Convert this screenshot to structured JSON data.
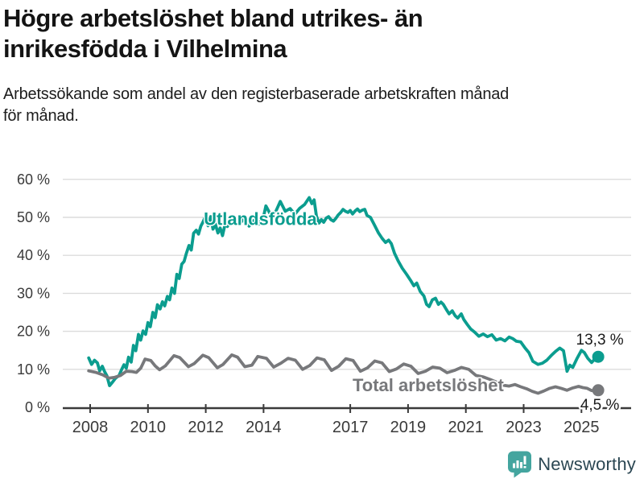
{
  "header": {
    "title": [
      "Högre arbetslöshet bland utrikes- än",
      "inrikesfödda i Vilhelmina"
    ],
    "subtitle": [
      "Arbetssökande som andel av den registerbaserade arbetskraften månad",
      "för månad."
    ]
  },
  "footer": {
    "brand": "Newsworthy"
  },
  "colors": {
    "accent_teal": "#0b9d8f",
    "series_gray": "#77787b",
    "grid": "#dcdcdc",
    "axis": "#3a3a3a",
    "tick_label": "#3a3a3a",
    "value_label": "#1a1a1a",
    "logo_teal": "#44a59f",
    "logo_text": "#2b4753"
  },
  "chart_data": {
    "type": "line",
    "title": "Högre arbetslöshet bland utrikes- än inrikesfödda i Vilhelmina",
    "subtitle": "Arbetssökande som andel av den registerbaserade arbetskraften månad för månad.",
    "x_unit": "decimal_year",
    "xlim": [
      2007.9,
      2025.7
    ],
    "ylim": [
      0,
      60
    ],
    "grid": "horizontal",
    "y_ticks": [
      {
        "value": 0,
        "label": "0 %"
      },
      {
        "value": 10,
        "label": "10 %"
      },
      {
        "value": 20,
        "label": "20 %"
      },
      {
        "value": 30,
        "label": "30 %"
      },
      {
        "value": 40,
        "label": "40 %"
      },
      {
        "value": 50,
        "label": "50 %"
      },
      {
        "value": 60,
        "label": "60 %"
      }
    ],
    "x_ticks": [
      {
        "value": 2008,
        "label": "2008"
      },
      {
        "value": 2010,
        "label": "2010"
      },
      {
        "value": 2012,
        "label": "2012"
      },
      {
        "value": 2014,
        "label": "2014"
      },
      {
        "value": 2017,
        "label": "2017"
      },
      {
        "value": 2019,
        "label": "2019"
      },
      {
        "value": 2021,
        "label": "2021"
      },
      {
        "value": 2023,
        "label": "2023"
      },
      {
        "value": 2025,
        "label": "2025"
      }
    ],
    "series": [
      {
        "name": "Utlandsfödda",
        "color": "#0b9d8f",
        "end_value": 13.3,
        "end_label": "13,3 %",
        "end_label_position": "above",
        "name_label_anchor": {
          "x": 2011.93,
          "y": 48.0
        },
        "points": [
          [
            2007.95,
            13.0
          ],
          [
            2008.05,
            11.3
          ],
          [
            2008.15,
            12.4
          ],
          [
            2008.25,
            11.7
          ],
          [
            2008.33,
            9.6
          ],
          [
            2008.42,
            10.8
          ],
          [
            2008.5,
            9.4
          ],
          [
            2008.58,
            8.3
          ],
          [
            2008.67,
            5.7
          ],
          [
            2008.78,
            6.7
          ],
          [
            2008.88,
            7.7
          ],
          [
            2009.0,
            8.4
          ],
          [
            2009.08,
            9.8
          ],
          [
            2009.17,
            11.2
          ],
          [
            2009.25,
            10.3
          ],
          [
            2009.33,
            13.2
          ],
          [
            2009.42,
            11.9
          ],
          [
            2009.5,
            16.3
          ],
          [
            2009.58,
            14.9
          ],
          [
            2009.67,
            19.2
          ],
          [
            2009.75,
            17.7
          ],
          [
            2009.83,
            20.1
          ],
          [
            2009.92,
            19.2
          ],
          [
            2010.0,
            22.3
          ],
          [
            2010.08,
            21.2
          ],
          [
            2010.17,
            25.0
          ],
          [
            2010.25,
            23.6
          ],
          [
            2010.33,
            27.0
          ],
          [
            2010.42,
            25.9
          ],
          [
            2010.5,
            27.8
          ],
          [
            2010.58,
            26.7
          ],
          [
            2010.67,
            29.2
          ],
          [
            2010.75,
            28.3
          ],
          [
            2010.83,
            31.4
          ],
          [
            2010.92,
            30.0
          ],
          [
            2011.0,
            35.0
          ],
          [
            2011.08,
            33.9
          ],
          [
            2011.17,
            37.7
          ],
          [
            2011.25,
            38.4
          ],
          [
            2011.33,
            40.5
          ],
          [
            2011.42,
            42.6
          ],
          [
            2011.5,
            41.4
          ],
          [
            2011.58,
            45.8
          ],
          [
            2011.67,
            46.6
          ],
          [
            2011.75,
            45.6
          ],
          [
            2011.83,
            47.7
          ],
          [
            2011.9,
            48.7
          ],
          [
            2012.0,
            50.4
          ],
          [
            2012.08,
            47.8
          ],
          [
            2012.17,
            50.2
          ],
          [
            2012.25,
            46.9
          ],
          [
            2012.33,
            48.3
          ],
          [
            2012.42,
            45.9
          ],
          [
            2012.5,
            47.2
          ],
          [
            2012.58,
            45.2
          ],
          [
            2012.67,
            48.3
          ],
          [
            2012.75,
            47.6
          ],
          [
            2012.83,
            49.0
          ],
          [
            2012.92,
            48.3
          ],
          [
            2013.0,
            49.5
          ],
          [
            2013.17,
            48.2
          ],
          [
            2013.33,
            49.8
          ],
          [
            2013.5,
            47.7
          ],
          [
            2013.67,
            49.2
          ],
          [
            2013.83,
            48.2
          ],
          [
            2014.0,
            50.2
          ],
          [
            2014.08,
            53.0
          ],
          [
            2014.25,
            50.6
          ],
          [
            2014.42,
            51.5
          ],
          [
            2014.58,
            54.2
          ],
          [
            2014.75,
            51.6
          ],
          [
            2014.92,
            52.3
          ],
          [
            2015.08,
            50.8
          ],
          [
            2015.25,
            52.4
          ],
          [
            2015.42,
            53.4
          ],
          [
            2015.58,
            55.2
          ],
          [
            2015.67,
            53.6
          ],
          [
            2015.75,
            54.6
          ],
          [
            2015.83,
            50.3
          ],
          [
            2015.92,
            48.5
          ],
          [
            2016.0,
            49.4
          ],
          [
            2016.08,
            48.7
          ],
          [
            2016.17,
            49.8
          ],
          [
            2016.25,
            50.2
          ],
          [
            2016.33,
            49.4
          ],
          [
            2016.42,
            49.0
          ],
          [
            2016.5,
            49.7
          ],
          [
            2016.58,
            50.6
          ],
          [
            2016.67,
            51.3
          ],
          [
            2016.75,
            52.1
          ],
          [
            2016.83,
            51.6
          ],
          [
            2016.92,
            51.3
          ],
          [
            2017.0,
            51.8
          ],
          [
            2017.08,
            50.9
          ],
          [
            2017.17,
            51.7
          ],
          [
            2017.25,
            52.2
          ],
          [
            2017.33,
            51.5
          ],
          [
            2017.42,
            51.9
          ],
          [
            2017.5,
            52.1
          ],
          [
            2017.58,
            50.5
          ],
          [
            2017.7,
            50.0
          ],
          [
            2017.83,
            48.1
          ],
          [
            2017.97,
            46.0
          ],
          [
            2018.1,
            44.5
          ],
          [
            2018.22,
            43.4
          ],
          [
            2018.33,
            44.0
          ],
          [
            2018.42,
            43.1
          ],
          [
            2018.53,
            40.6
          ],
          [
            2018.66,
            38.5
          ],
          [
            2018.8,
            36.6
          ],
          [
            2018.95,
            35.0
          ],
          [
            2019.08,
            33.5
          ],
          [
            2019.2,
            32.0
          ],
          [
            2019.3,
            32.7
          ],
          [
            2019.42,
            30.5
          ],
          [
            2019.55,
            29.3
          ],
          [
            2019.64,
            27.1
          ],
          [
            2019.73,
            26.5
          ],
          [
            2019.84,
            28.3
          ],
          [
            2019.95,
            28.7
          ],
          [
            2020.05,
            27.1
          ],
          [
            2020.14,
            27.7
          ],
          [
            2020.22,
            27.1
          ],
          [
            2020.32,
            25.8
          ],
          [
            2020.42,
            24.6
          ],
          [
            2020.53,
            25.4
          ],
          [
            2020.63,
            24.1
          ],
          [
            2020.72,
            23.5
          ],
          [
            2020.84,
            24.6
          ],
          [
            2020.93,
            23.1
          ],
          [
            2021.05,
            21.8
          ],
          [
            2021.17,
            20.6
          ],
          [
            2021.3,
            19.8
          ],
          [
            2021.45,
            18.7
          ],
          [
            2021.6,
            19.3
          ],
          [
            2021.75,
            18.6
          ],
          [
            2021.9,
            19.1
          ],
          [
            2022.05,
            17.7
          ],
          [
            2022.2,
            18.1
          ],
          [
            2022.35,
            17.5
          ],
          [
            2022.5,
            18.5
          ],
          [
            2022.62,
            18.1
          ],
          [
            2022.75,
            17.4
          ],
          [
            2022.9,
            17.2
          ],
          [
            2023.05,
            15.6
          ],
          [
            2023.18,
            14.4
          ],
          [
            2023.32,
            12.1
          ],
          [
            2023.5,
            11.3
          ],
          [
            2023.65,
            11.6
          ],
          [
            2023.8,
            12.4
          ],
          [
            2023.95,
            13.6
          ],
          [
            2024.1,
            14.7
          ],
          [
            2024.25,
            15.6
          ],
          [
            2024.38,
            14.9
          ],
          [
            2024.5,
            9.5
          ],
          [
            2024.6,
            11.1
          ],
          [
            2024.7,
            10.5
          ],
          [
            2024.85,
            12.9
          ],
          [
            2025.0,
            15.0
          ],
          [
            2025.1,
            14.4
          ],
          [
            2025.22,
            12.9
          ],
          [
            2025.35,
            11.8
          ],
          [
            2025.45,
            12.6
          ],
          [
            2025.58,
            13.3
          ]
        ]
      },
      {
        "name": "Total arbetslöshet",
        "color": "#77787b",
        "end_value": 4.5,
        "end_label": "4,5 %",
        "end_label_position": "below",
        "name_label_anchor": {
          "x": 2017.08,
          "y": 4.2
        },
        "points": [
          [
            2007.95,
            9.6
          ],
          [
            2008.2,
            9.2
          ],
          [
            2008.45,
            8.5
          ],
          [
            2008.65,
            7.7
          ],
          [
            2008.85,
            7.9
          ],
          [
            2009.05,
            8.4
          ],
          [
            2009.25,
            9.5
          ],
          [
            2009.45,
            9.4
          ],
          [
            2009.6,
            9.2
          ],
          [
            2009.75,
            10.3
          ],
          [
            2009.9,
            12.7
          ],
          [
            2010.1,
            12.3
          ],
          [
            2010.25,
            10.9
          ],
          [
            2010.4,
            9.9
          ],
          [
            2010.6,
            10.9
          ],
          [
            2010.9,
            13.6
          ],
          [
            2011.1,
            13.1
          ],
          [
            2011.4,
            10.7
          ],
          [
            2011.6,
            11.5
          ],
          [
            2011.9,
            13.7
          ],
          [
            2012.1,
            13.1
          ],
          [
            2012.4,
            10.4
          ],
          [
            2012.6,
            11.3
          ],
          [
            2012.9,
            13.8
          ],
          [
            2013.1,
            13.2
          ],
          [
            2013.35,
            10.7
          ],
          [
            2013.6,
            11.1
          ],
          [
            2013.8,
            13.4
          ],
          [
            2014.1,
            12.9
          ],
          [
            2014.35,
            10.6
          ],
          [
            2014.6,
            11.6
          ],
          [
            2014.85,
            12.9
          ],
          [
            2015.1,
            12.4
          ],
          [
            2015.35,
            10.0
          ],
          [
            2015.6,
            11.0
          ],
          [
            2015.85,
            13.0
          ],
          [
            2016.1,
            12.5
          ],
          [
            2016.35,
            9.7
          ],
          [
            2016.6,
            10.8
          ],
          [
            2016.85,
            12.8
          ],
          [
            2017.1,
            12.3
          ],
          [
            2017.35,
            9.5
          ],
          [
            2017.6,
            10.4
          ],
          [
            2017.85,
            12.2
          ],
          [
            2018.1,
            11.7
          ],
          [
            2018.35,
            9.4
          ],
          [
            2018.6,
            10.1
          ],
          [
            2018.85,
            11.4
          ],
          [
            2019.1,
            10.8
          ],
          [
            2019.35,
            8.9
          ],
          [
            2019.6,
            9.5
          ],
          [
            2019.85,
            10.6
          ],
          [
            2020.1,
            10.3
          ],
          [
            2020.35,
            9.1
          ],
          [
            2020.6,
            9.7
          ],
          [
            2020.85,
            10.5
          ],
          [
            2021.1,
            10.0
          ],
          [
            2021.35,
            8.4
          ],
          [
            2021.6,
            8.0
          ],
          [
            2021.85,
            7.3
          ],
          [
            2022.1,
            6.5
          ],
          [
            2022.3,
            5.8
          ],
          [
            2022.5,
            5.6
          ],
          [
            2022.7,
            6.0
          ],
          [
            2022.9,
            5.4
          ],
          [
            2023.1,
            4.9
          ],
          [
            2023.3,
            4.2
          ],
          [
            2023.5,
            3.7
          ],
          [
            2023.7,
            4.3
          ],
          [
            2023.9,
            5.0
          ],
          [
            2024.1,
            5.4
          ],
          [
            2024.3,
            5.0
          ],
          [
            2024.5,
            4.5
          ],
          [
            2024.7,
            5.1
          ],
          [
            2024.9,
            5.5
          ],
          [
            2025.05,
            5.2
          ],
          [
            2025.2,
            5.0
          ],
          [
            2025.35,
            4.4
          ],
          [
            2025.58,
            4.5
          ]
        ]
      }
    ],
    "legend_position": "inline-labels"
  }
}
